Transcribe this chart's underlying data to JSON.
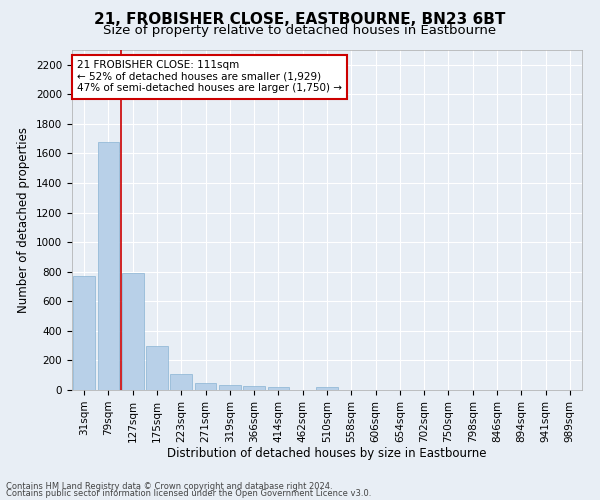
{
  "title": "21, FROBISHER CLOSE, EASTBOURNE, BN23 6BT",
  "subtitle": "Size of property relative to detached houses in Eastbourne",
  "xlabel": "Distribution of detached houses by size in Eastbourne",
  "ylabel": "Number of detached properties",
  "footnote1": "Contains HM Land Registry data © Crown copyright and database right 2024.",
  "footnote2": "Contains public sector information licensed under the Open Government Licence v3.0.",
  "categories": [
    "31sqm",
    "79sqm",
    "127sqm",
    "175sqm",
    "223sqm",
    "271sqm",
    "319sqm",
    "366sqm",
    "414sqm",
    "462sqm",
    "510sqm",
    "558sqm",
    "606sqm",
    "654sqm",
    "702sqm",
    "750sqm",
    "798sqm",
    "846sqm",
    "894sqm",
    "941sqm",
    "989sqm"
  ],
  "values": [
    770,
    1680,
    790,
    300,
    110,
    45,
    32,
    25,
    22,
    0,
    22,
    0,
    0,
    0,
    0,
    0,
    0,
    0,
    0,
    0,
    0
  ],
  "bar_color": "#b8d0e8",
  "bar_edge_color": "#8ab4d4",
  "property_line_color": "#cc0000",
  "annotation_text": "21 FROBISHER CLOSE: 111sqm\n← 52% of detached houses are smaller (1,929)\n47% of semi-detached houses are larger (1,750) →",
  "annotation_box_color": "#ffffff",
  "annotation_box_edge": "#cc0000",
  "ylim": [
    0,
    2300
  ],
  "yticks": [
    0,
    200,
    400,
    600,
    800,
    1000,
    1200,
    1400,
    1600,
    1800,
    2000,
    2200
  ],
  "bg_color": "#e8eef5",
  "plot_bg_color": "#e8eef5",
  "grid_color": "#ffffff",
  "title_fontsize": 11,
  "subtitle_fontsize": 9.5,
  "axis_label_fontsize": 8.5,
  "tick_fontsize": 7.5,
  "annotation_fontsize": 7.5,
  "footnote_fontsize": 6.0
}
